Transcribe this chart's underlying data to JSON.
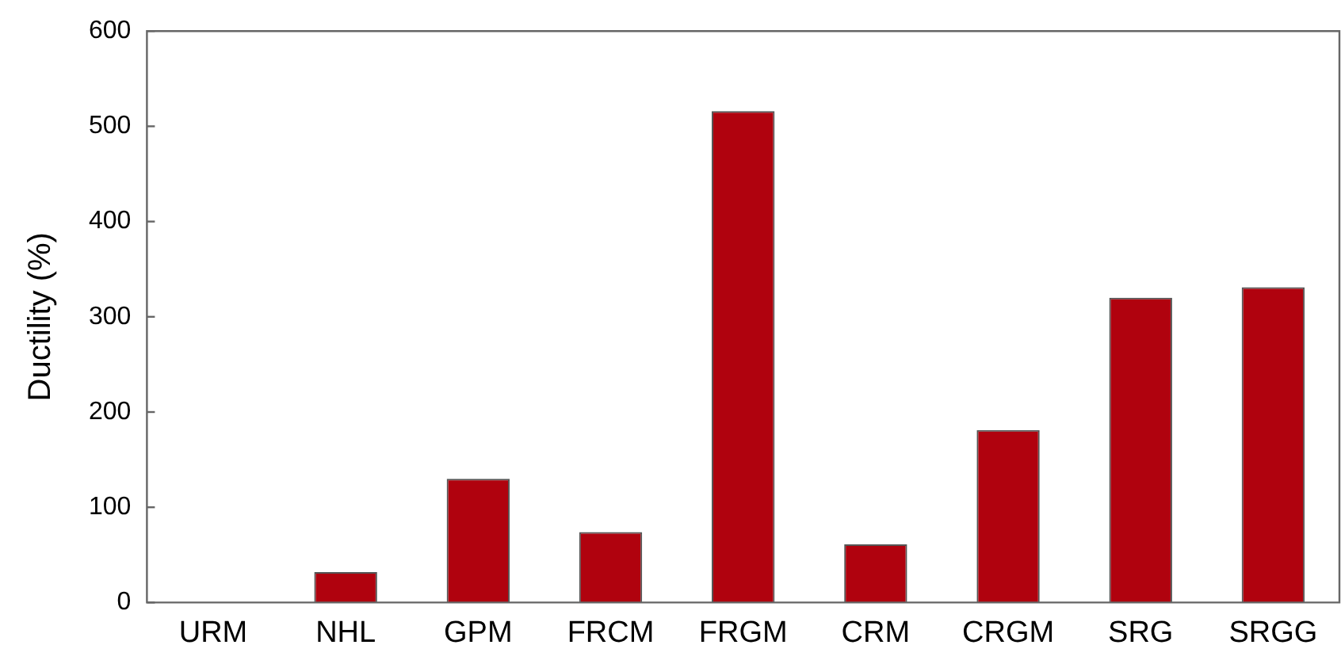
{
  "chart_data": {
    "type": "bar",
    "ylabel": "Ductility (%)",
    "categories": [
      "URM",
      "NHL",
      "GPM",
      "FRCM",
      "FRGM",
      "CRM",
      "CRGM",
      "SRG",
      "SRGG"
    ],
    "values": [
      0,
      32,
      130,
      74,
      516,
      61,
      181,
      320,
      331
    ],
    "color": "#b0020e",
    "ylim": [
      0,
      600
    ],
    "yticks": [
      0,
      100,
      200,
      300,
      400,
      500,
      600
    ],
    "grid": false,
    "legend": false
  }
}
